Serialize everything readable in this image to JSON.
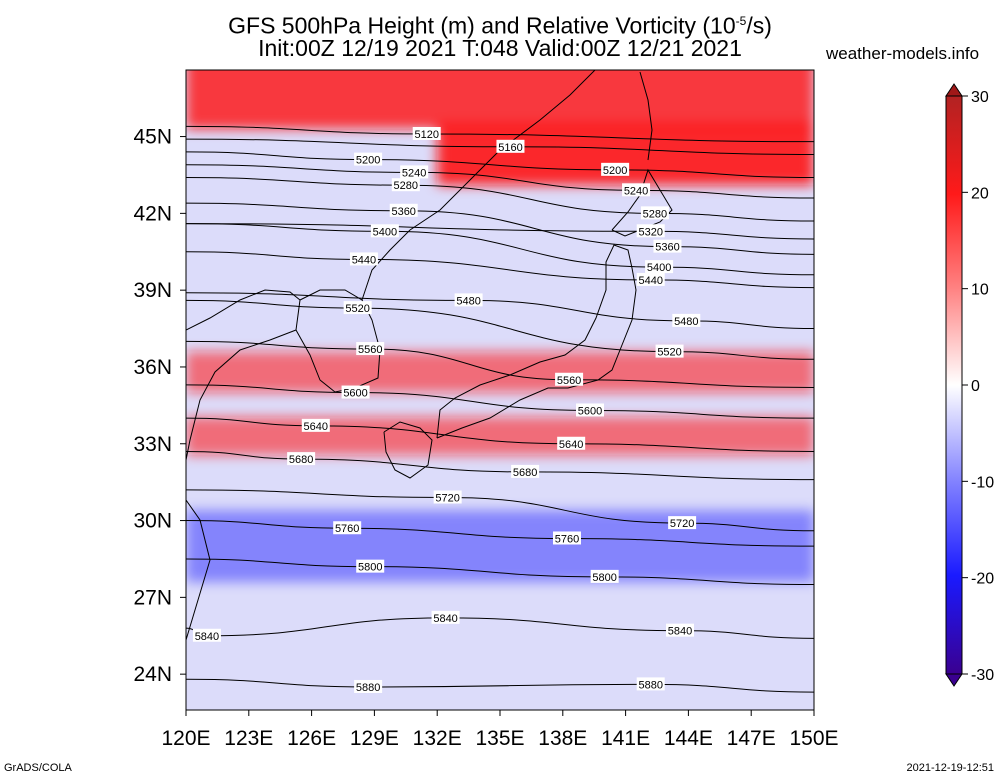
{
  "header": {
    "title_line1": "GFS 500hPa Height (m) and Relative Vorticity (10",
    "title_exp": "-5",
    "title_unit_end": "/s)",
    "title_line2": "Init:00Z 12/19 2021 T:048 Valid:00Z 12/21 2021",
    "site": "weather-models.info"
  },
  "footer": {
    "credit": "GrADS/COLA",
    "timestamp": "2021-12-19-12:51"
  },
  "map": {
    "lon_ticks": [
      "120E",
      "123E",
      "126E",
      "129E",
      "132E",
      "135E",
      "138E",
      "141E",
      "144E",
      "147E",
      "150E"
    ],
    "lat_ticks": [
      "45N",
      "42N",
      "39N",
      "36N",
      "33N",
      "30N",
      "27N",
      "24N"
    ],
    "lon_range": [
      120,
      150
    ],
    "lat_range": [
      22.6,
      47.6
    ]
  },
  "colorbar": {
    "labels": [
      "30",
      "20",
      "10",
      "0",
      "-10",
      "-20",
      "-30"
    ],
    "values": [
      30,
      20,
      10,
      0,
      -10,
      -20,
      -30
    ],
    "colors": {
      "max": "#a01818",
      "pos": "#ff1010",
      "zero": "#ffffff",
      "neg": "#1010ff",
      "min": "#3a0090"
    }
  },
  "vorticity_bands": [
    {
      "lat_center": 46.8,
      "lon_from": 120,
      "lon_to": 150,
      "width_deg": 3.0,
      "value": 20
    },
    {
      "lat_center": 44.3,
      "lon_from": 132,
      "lon_to": 150,
      "width_deg": 2.4,
      "value": 22
    },
    {
      "lat_center": 35.8,
      "lon_from": 120,
      "lon_to": 150,
      "width_deg": 1.6,
      "value": 14
    },
    {
      "lat_center": 33.3,
      "lon_from": 120,
      "lon_to": 150,
      "width_deg": 1.5,
      "value": 14
    },
    {
      "lat_center": 29.0,
      "lon_from": 120,
      "lon_to": 150,
      "width_deg": 2.8,
      "value": -10
    }
  ],
  "contour_labels": [
    {
      "text": "5120",
      "lon": 131.5,
      "lat": 45.1
    },
    {
      "text": "5160",
      "lon": 135.5,
      "lat": 44.6
    },
    {
      "text": "5200",
      "lon": 128.7,
      "lat": 44.1
    },
    {
      "text": "5200",
      "lon": 140.5,
      "lat": 43.7
    },
    {
      "text": "5240",
      "lon": 130.9,
      "lat": 43.6
    },
    {
      "text": "5280",
      "lon": 130.5,
      "lat": 43.1
    },
    {
      "text": "5240",
      "lon": 141.5,
      "lat": 42.9
    },
    {
      "text": "5360",
      "lon": 130.4,
      "lat": 42.1
    },
    {
      "text": "5280",
      "lon": 142.4,
      "lat": 42.0
    },
    {
      "text": "5320",
      "lon": 142.2,
      "lat": 41.3
    },
    {
      "text": "5400",
      "lon": 129.5,
      "lat": 41.3
    },
    {
      "text": "5360",
      "lon": 143.0,
      "lat": 40.7
    },
    {
      "text": "5440",
      "lon": 128.5,
      "lat": 40.2
    },
    {
      "text": "5400",
      "lon": 142.6,
      "lat": 39.9
    },
    {
      "text": "5440",
      "lon": 142.2,
      "lat": 39.4
    },
    {
      "text": "5480",
      "lon": 133.5,
      "lat": 38.6
    },
    {
      "text": "5520",
      "lon": 128.2,
      "lat": 38.3
    },
    {
      "text": "5480",
      "lon": 143.9,
      "lat": 37.8
    },
    {
      "text": "5560",
      "lon": 128.8,
      "lat": 36.7
    },
    {
      "text": "5520",
      "lon": 143.1,
      "lat": 36.6
    },
    {
      "text": "5560",
      "lon": 138.3,
      "lat": 35.5
    },
    {
      "text": "5600",
      "lon": 128.1,
      "lat": 35.0
    },
    {
      "text": "5600",
      "lon": 139.3,
      "lat": 34.3
    },
    {
      "text": "5640",
      "lon": 126.2,
      "lat": 33.7
    },
    {
      "text": "5640",
      "lon": 138.4,
      "lat": 33.0
    },
    {
      "text": "5680",
      "lon": 125.5,
      "lat": 32.4
    },
    {
      "text": "5680",
      "lon": 136.2,
      "lat": 31.9
    },
    {
      "text": "5720",
      "lon": 132.5,
      "lat": 30.9
    },
    {
      "text": "5720",
      "lon": 143.7,
      "lat": 29.9
    },
    {
      "text": "5760",
      "lon": 127.7,
      "lat": 29.7
    },
    {
      "text": "5760",
      "lon": 138.2,
      "lat": 29.3
    },
    {
      "text": "5800",
      "lon": 128.8,
      "lat": 28.2
    },
    {
      "text": "5800",
      "lon": 140.0,
      "lat": 27.8
    },
    {
      "text": "5840",
      "lon": 132.4,
      "lat": 26.2
    },
    {
      "text": "5840",
      "lon": 121.0,
      "lat": 25.5
    },
    {
      "text": "5840",
      "lon": 143.6,
      "lat": 25.7
    },
    {
      "text": "5880",
      "lon": 128.7,
      "lat": 23.5
    },
    {
      "text": "5880",
      "lon": 142.2,
      "lat": 23.6
    }
  ]
}
